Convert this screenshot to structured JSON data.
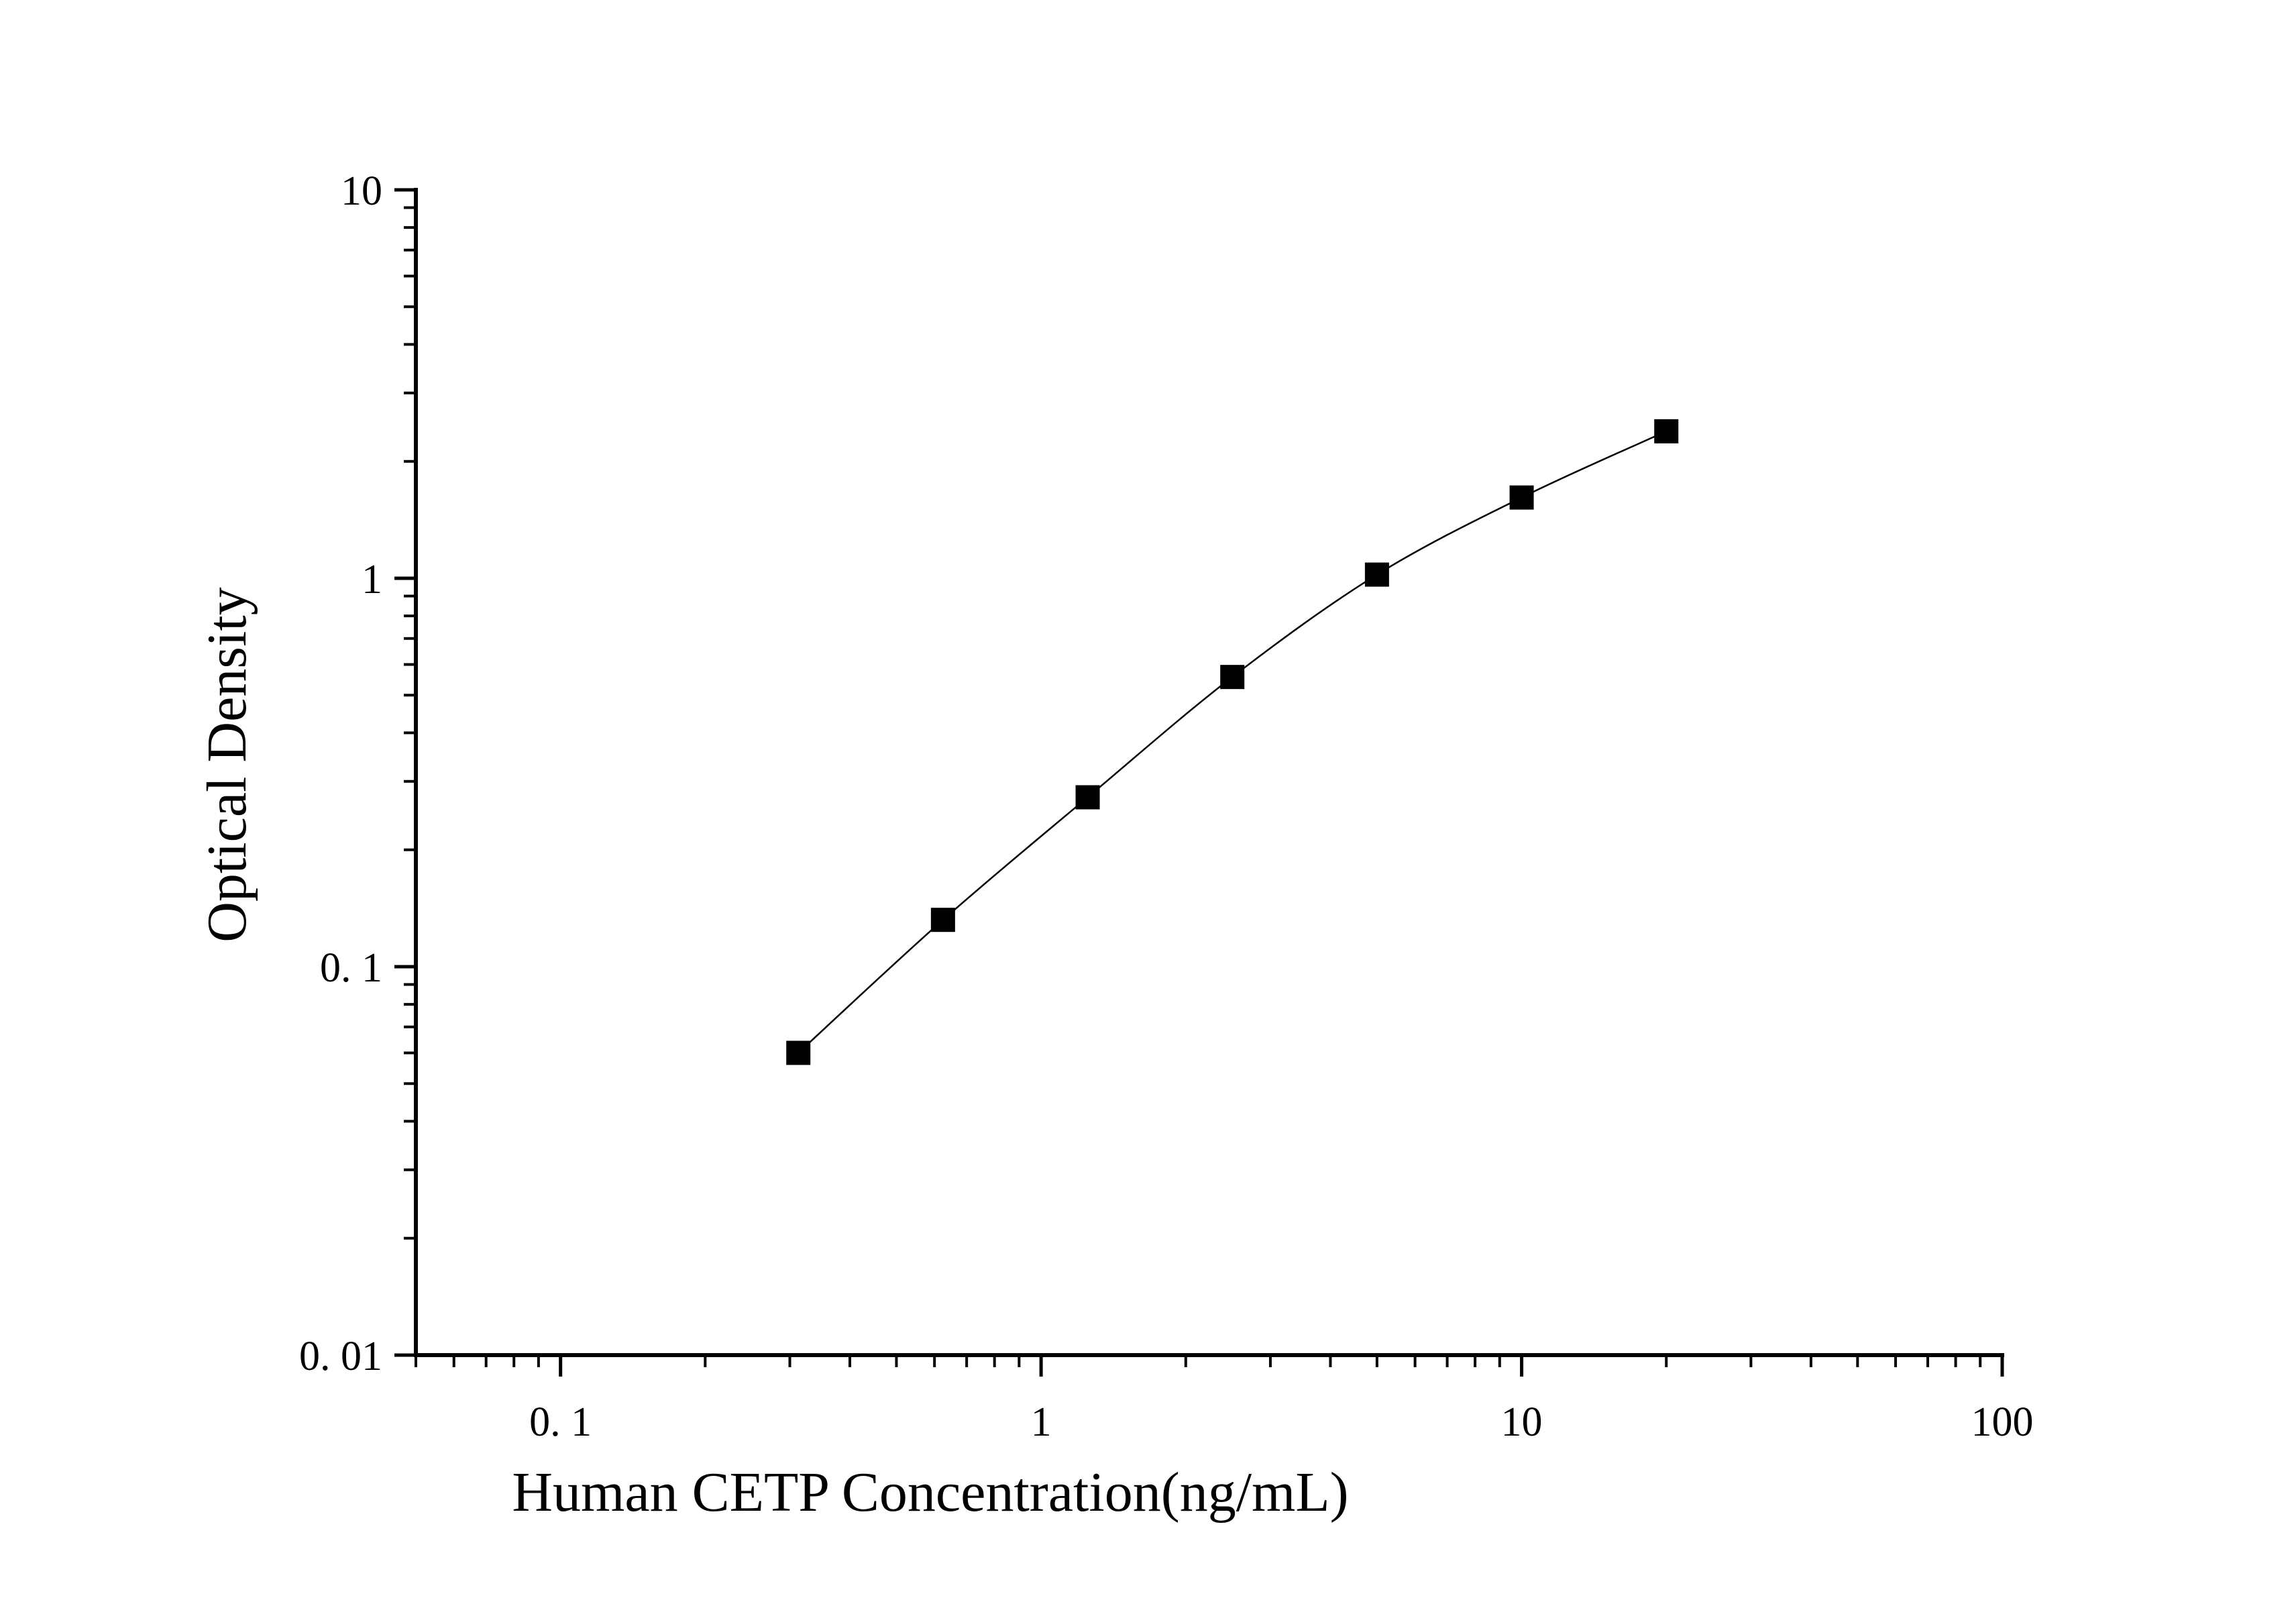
{
  "chart_data": {
    "type": "scatter",
    "title": "",
    "xlabel": "Human CETP Concentration(ng/mL)",
    "ylabel": "Optical Density",
    "xscale": "log",
    "yscale": "log",
    "xlim": [
      0.05,
      100
    ],
    "ylim": [
      0.01,
      10
    ],
    "x_tick_values": [
      0.1,
      1,
      10,
      100
    ],
    "x_tick_labels": [
      "0. 1",
      "1",
      "10",
      "100"
    ],
    "y_tick_values": [
      0.01,
      0.1,
      1,
      10
    ],
    "y_tick_labels": [
      "0. 01",
      "0. 1",
      "1",
      "10"
    ],
    "grid": false,
    "legend": "none",
    "marker": "square",
    "fit_line": "smooth curve through points",
    "series": [
      {
        "x": [
          0.3125,
          0.625,
          1.25,
          2.5,
          5,
          10,
          20
        ],
        "y": [
          0.06,
          0.132,
          0.273,
          0.557,
          1.022,
          1.614,
          2.39
        ]
      }
    ],
    "colors": {
      "marker": "#000000",
      "line": "#000000",
      "axis": "#000000",
      "background": "#ffffff"
    }
  }
}
